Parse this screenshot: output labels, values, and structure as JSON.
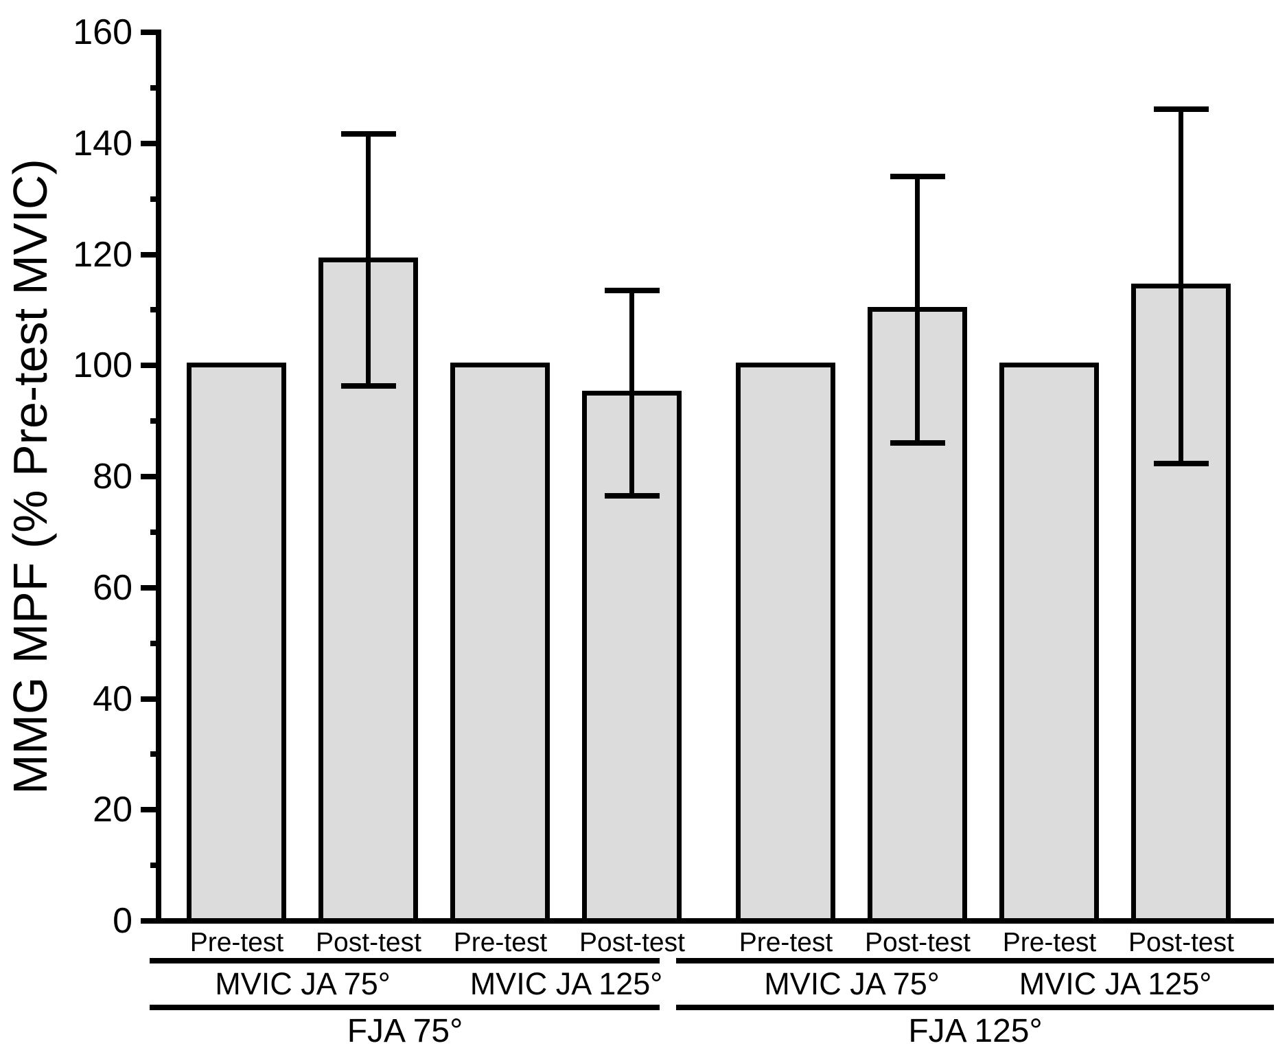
{
  "figure": {
    "background": "#FFFFFF",
    "bar_fill": "#DCDCDC",
    "line_color": "#000000"
  },
  "chart_data": {
    "type": "bar",
    "title": "",
    "xlabel": "",
    "ylabel": "MMG MPF (% Pre-test MVIC)",
    "ylim": [
      0,
      160
    ],
    "ytick_step": 20,
    "yminor_step": 10,
    "yticks": [
      0,
      20,
      40,
      60,
      80,
      100,
      120,
      140,
      160
    ],
    "grid": false,
    "legend": null,
    "bar_color": "#DCDCDC",
    "error_bar_style": "symmetric caps, black",
    "groups": [
      {
        "label": "FJA 75°",
        "subgroups": [
          {
            "label": "MVIC JA 75°",
            "bars": [
              {
                "label": "Pre-test",
                "value": 100,
                "error": null
              },
              {
                "label": "Post-test",
                "value": 119,
                "error": 22.7
              }
            ]
          },
          {
            "label": "MVIC JA 125°",
            "bars": [
              {
                "label": "Pre-test",
                "value": 100,
                "error": null
              },
              {
                "label": "Post-test",
                "value": 95,
                "error": 18.5
              }
            ]
          }
        ]
      },
      {
        "label": "FJA 125°",
        "subgroups": [
          {
            "label": "MVIC JA 75°",
            "bars": [
              {
                "label": "Pre-test",
                "value": 100,
                "error": null
              },
              {
                "label": "Post-test",
                "value": 110,
                "error": 24
              }
            ]
          },
          {
            "label": "MVIC JA 125°",
            "bars": [
              {
                "label": "Pre-test",
                "value": 100,
                "error": null
              },
              {
                "label": "Post-test",
                "value": 114.3,
                "error": 31.9
              }
            ]
          }
        ]
      }
    ]
  }
}
